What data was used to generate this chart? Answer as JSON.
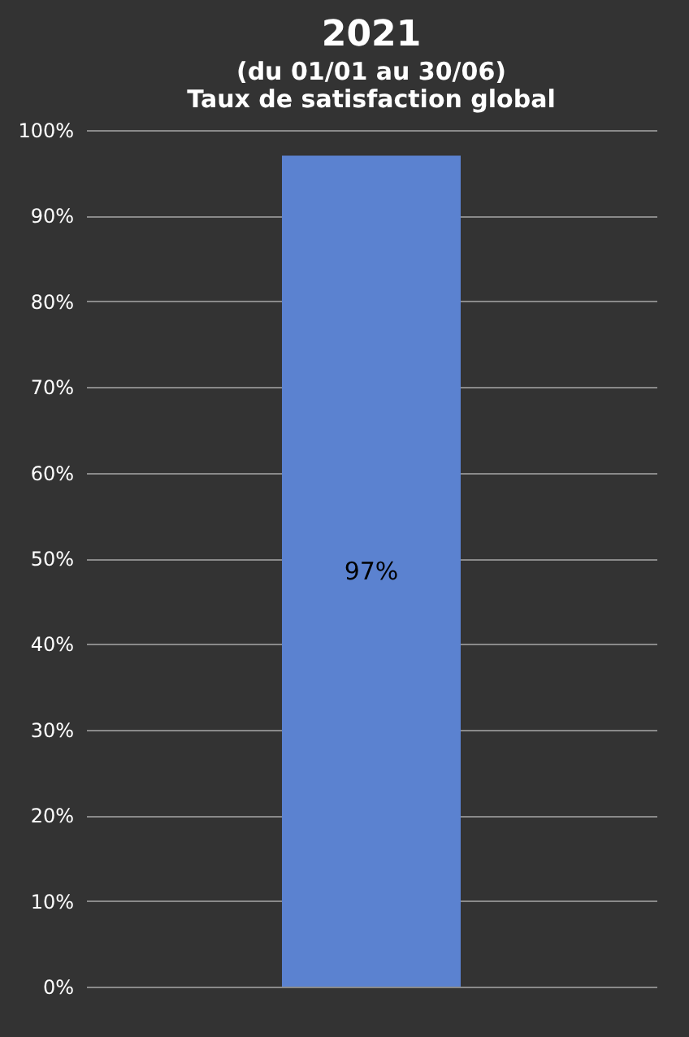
{
  "chart_data": {
    "type": "bar",
    "title": "2021",
    "subtitle": "(du 01/01 au 30/06)\nTaux de satisfaction global",
    "categories": [
      null
    ],
    "values": [
      97
    ],
    "color": "#5b82d0",
    "value_labels": [
      "97%"
    ],
    "ylim": [
      0,
      100
    ],
    "yticks": [
      {
        "value": 0,
        "label": "0%"
      },
      {
        "value": 10,
        "label": "10%"
      },
      {
        "value": 20,
        "label": "20%"
      },
      {
        "value": 30,
        "label": "30%"
      },
      {
        "value": 40,
        "label": "40%"
      },
      {
        "value": 50,
        "label": "50%"
      },
      {
        "value": 60,
        "label": "60%"
      },
      {
        "value": 70,
        "label": "70%"
      },
      {
        "value": 80,
        "label": "80%"
      },
      {
        "value": 90,
        "label": "90%"
      },
      {
        "value": 100,
        "label": "100%"
      }
    ],
    "grid": "y",
    "tick_labels": "y"
  }
}
